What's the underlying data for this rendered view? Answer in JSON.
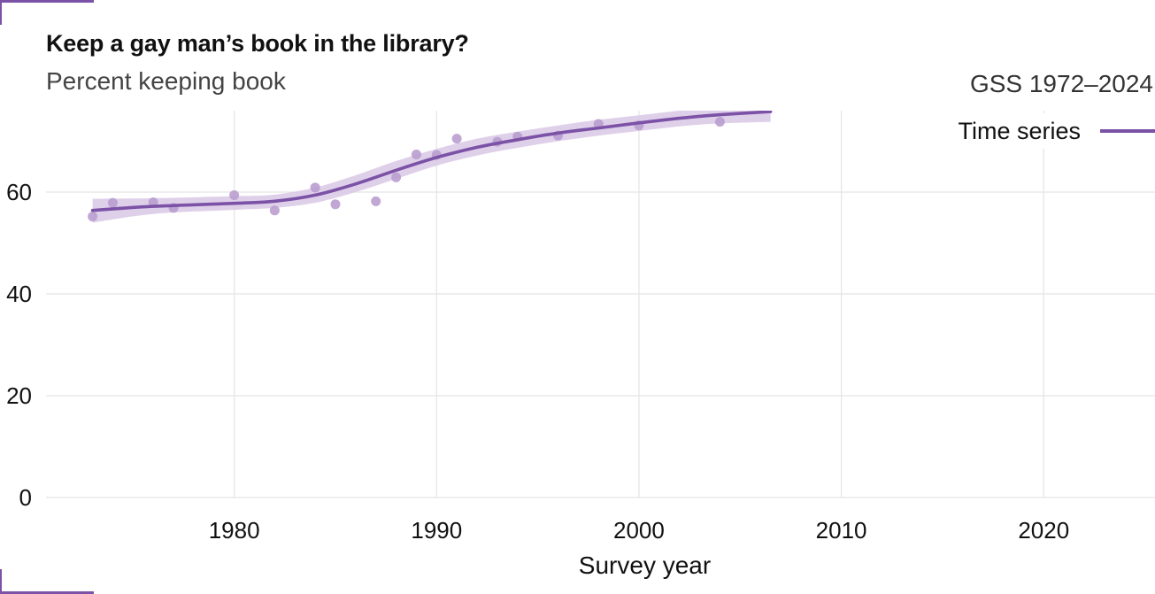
{
  "title": "Keep a gay man’s book in the library?",
  "subtitle": "Percent keeping book",
  "source": "GSS 1972–2024",
  "legend": {
    "label": "Time series"
  },
  "colors": {
    "accent": "#7b52a6",
    "band": "#d9c8e6",
    "points": "#b99dcf",
    "grid": "#e4e4e4"
  },
  "chart_data": {
    "type": "line",
    "title": "Keep a gay man’s book in the library?",
    "subtitle": "Percent keeping book",
    "xlabel": "Survey year",
    "ylabel": "",
    "xlim": [
      1970.7,
      2025.5
    ],
    "ylim": [
      0,
      76
    ],
    "x_ticks": [
      1980,
      1990,
      2000,
      2010,
      2020
    ],
    "y_ticks": [
      0,
      20,
      40,
      60
    ],
    "grid": true,
    "legend_position": "top-right",
    "series": [
      {
        "name": "Time series",
        "kind": "smooth",
        "x": [
          1973,
          1976,
          1980,
          1982,
          1984,
          1986,
          1988,
          1990,
          1992,
          1994,
          1996,
          1998,
          2000,
          2002,
          2004,
          2006.5
        ],
        "y": [
          56.4,
          57.2,
          57.8,
          58.2,
          59.4,
          61.6,
          64.3,
          66.8,
          68.8,
          70.3,
          71.6,
          72.6,
          73.6,
          74.5,
          75.2,
          75.8
        ],
        "lower": [
          54.0,
          55.7,
          56.5,
          56.9,
          57.9,
          60.0,
          62.6,
          65.2,
          67.2,
          68.7,
          70.0,
          71.1,
          72.0,
          72.9,
          73.5,
          73.8
        ],
        "upper": [
          58.7,
          58.8,
          59.2,
          59.5,
          60.9,
          63.3,
          66.1,
          68.5,
          70.5,
          71.9,
          73.1,
          74.2,
          75.1,
          76.0,
          76.7,
          77.6
        ]
      },
      {
        "name": "",
        "kind": "points",
        "x": [
          1973,
          1974,
          1976,
          1977,
          1980,
          1982,
          1984,
          1985,
          1987,
          1988,
          1989,
          1990,
          1991,
          1993,
          1994,
          1996,
          1998,
          2000,
          2004
        ],
        "y": [
          55.2,
          57.9,
          58.0,
          56.9,
          59.4,
          56.4,
          60.9,
          57.6,
          58.2,
          62.9,
          67.4,
          67.3,
          70.5,
          69.9,
          70.9,
          71.1,
          73.4,
          73.1,
          73.8
        ]
      }
    ]
  }
}
